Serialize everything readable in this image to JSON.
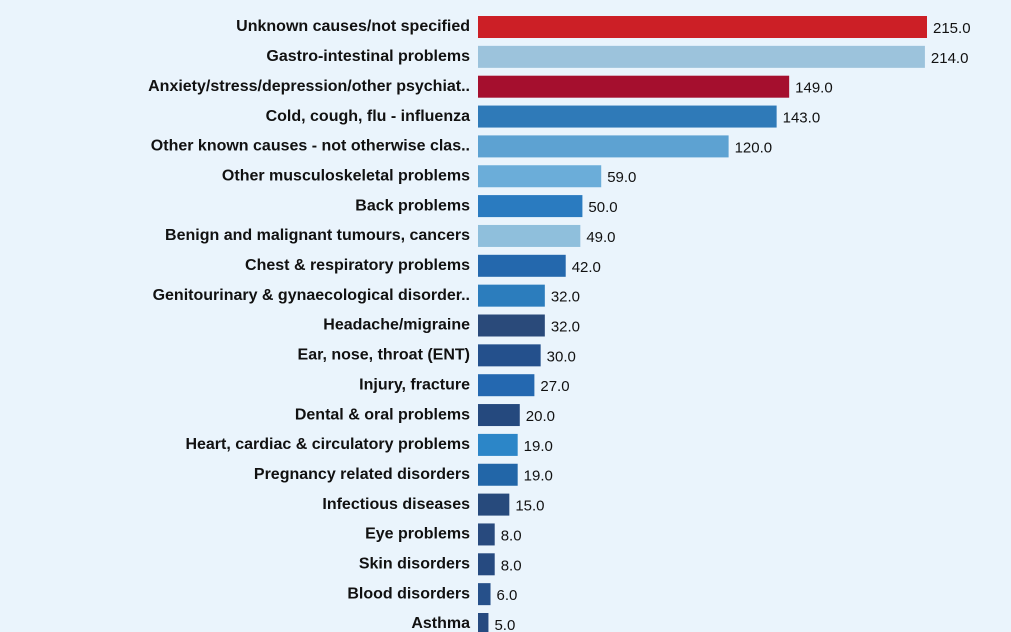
{
  "chart_data": {
    "type": "bar",
    "orientation": "horizontal",
    "categories": [
      "Unknown causes/not specified",
      "Gastro-intestinal problems",
      "Anxiety/stress/depression/other psychiat..",
      "Cold, cough, flu - influenza",
      "Other known causes - not otherwise clas..",
      "Other musculoskeletal problems",
      "Back problems",
      "Benign and malignant tumours, cancers",
      "Chest & respiratory problems",
      "Genitourinary & gynaecological disorder..",
      "Headache/migraine",
      "Ear, nose, throat (ENT)",
      "Injury, fracture",
      "Dental & oral problems",
      "Heart, cardiac & circulatory problems",
      "Pregnancy related disorders",
      "Infectious diseases",
      "Eye problems",
      "Skin disorders",
      "Blood disorders",
      "Asthma"
    ],
    "values": [
      215,
      214,
      149,
      143,
      120,
      59,
      50,
      49,
      42,
      32,
      32,
      30,
      27,
      20,
      19,
      19,
      15,
      8,
      8,
      6,
      5
    ],
    "value_labels": [
      "215.0",
      "214.0",
      "149.0",
      "143.0",
      "120.0",
      "59.0",
      "50.0",
      "49.0",
      "42.0",
      "32.0",
      "32.0",
      "30.0",
      "27.0",
      "20.0",
      "19.0",
      "19.0",
      "15.0",
      "8.0",
      "8.0",
      "6.0",
      "5.0"
    ],
    "colors": [
      "#cc1f26",
      "#9cc3dc",
      "#a50f2e",
      "#2f7ab8",
      "#5da2d2",
      "#6badd9",
      "#2a7bc0",
      "#8fbfdc",
      "#2468ad",
      "#2c7dbd",
      "#2a4a7a",
      "#24508c",
      "#2468b0",
      "#25497e",
      "#2c86c8",
      "#2266a8",
      "#274a7c",
      "#284a7e",
      "#264a80",
      "#26508a",
      "#264a80"
    ]
  }
}
